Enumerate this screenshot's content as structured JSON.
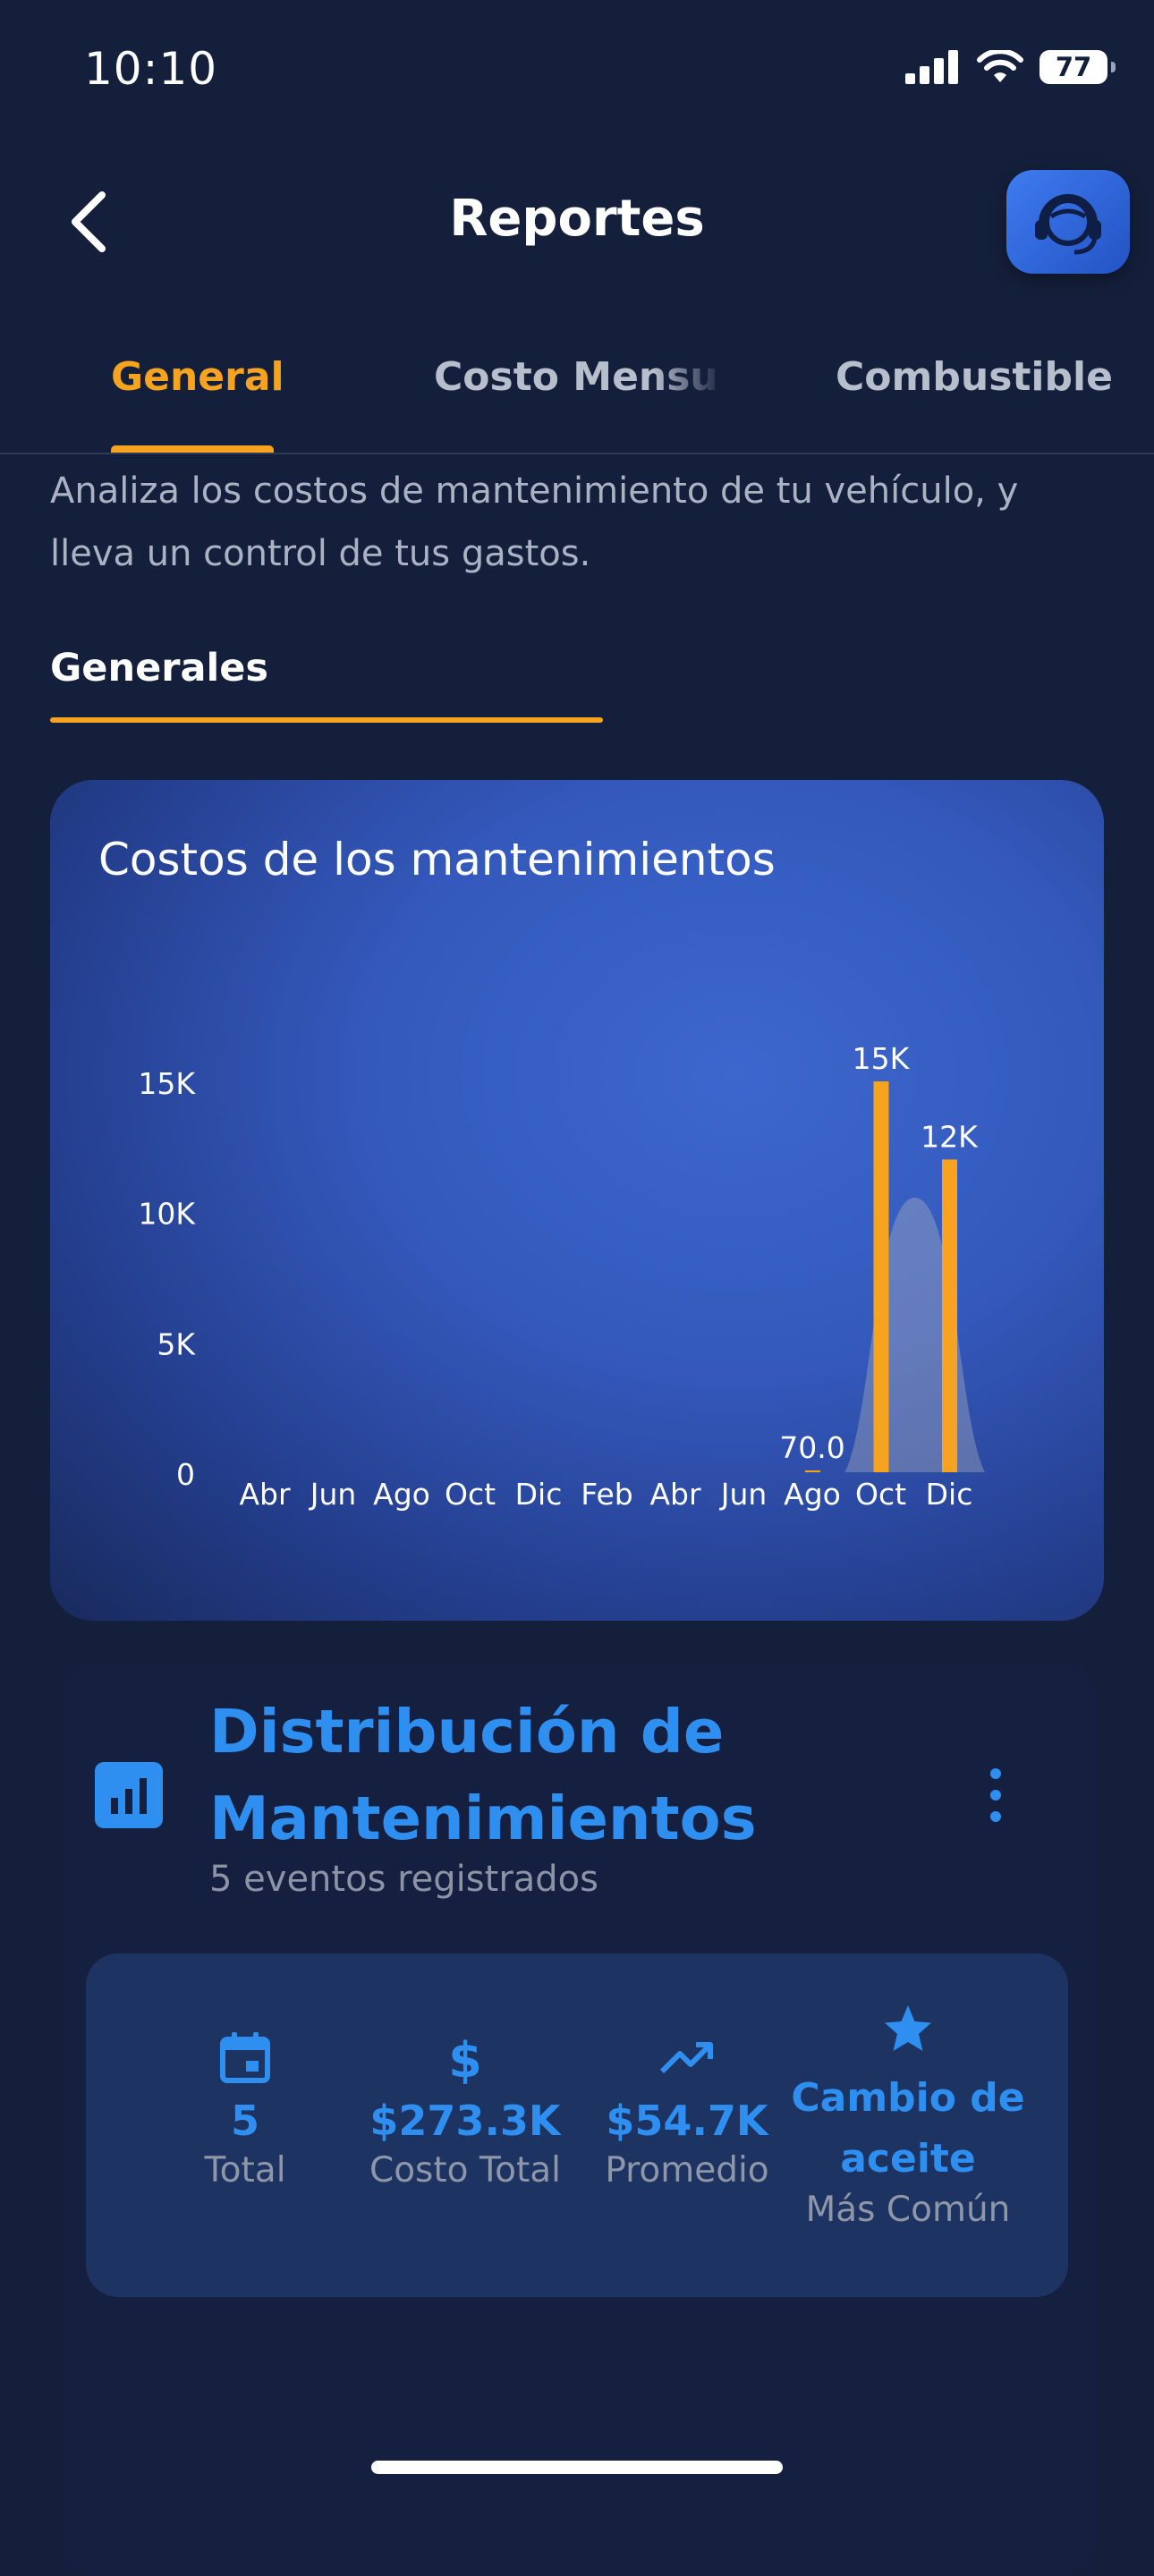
{
  "status_bar": {
    "time": "10:10",
    "battery": "77"
  },
  "header": {
    "title": "Reportes"
  },
  "tabs": [
    {
      "label": "General",
      "active": true
    },
    {
      "label": "Costo Mensual",
      "active": false
    },
    {
      "label": "Combustible",
      "active": false
    }
  ],
  "intro_text": "Analiza los costos de mantenimiento de tu vehículo, y lleva un control de tus gastos.",
  "section_label": "Generales",
  "chart_card": {
    "title": "Costos de los mantenimientos"
  },
  "chart_data": {
    "type": "bar",
    "title": "Costos de los mantenimientos",
    "categories": [
      "Abr",
      "Jun",
      "Ago",
      "Oct",
      "Dic",
      "Feb",
      "Abr",
      "Jun",
      "Ago",
      "Oct",
      "Dic"
    ],
    "values": [
      0,
      0,
      0,
      0,
      0,
      0,
      0,
      0,
      70,
      15000,
      12000
    ],
    "data_labels": [
      "",
      "",
      "",
      "",
      "",
      "",
      "",
      "",
      "70.0",
      "15K",
      "12K"
    ],
    "y_ticks": [
      "0",
      "5K",
      "10K",
      "15K"
    ],
    "ylim": [
      0,
      15000
    ],
    "grid": false,
    "bar_color": "#f6a322"
  },
  "distribution": {
    "title": "Distribución de Mantenimientos",
    "subtitle": "5 eventos registrados",
    "stats": [
      {
        "icon": "calendar-icon",
        "value": "5",
        "label": "Total"
      },
      {
        "icon": "dollar-icon",
        "value": "$273.3K",
        "label": "Costo Total"
      },
      {
        "icon": "trending-up-icon",
        "value": "$54.7K",
        "label": "Promedio"
      },
      {
        "icon": "star-icon",
        "value": "Cambio de aceite",
        "label": "Más Común"
      }
    ]
  },
  "colors": {
    "accent": "#f6a322",
    "primary_blue": "#2f8ff0",
    "background": "#141f3b"
  }
}
